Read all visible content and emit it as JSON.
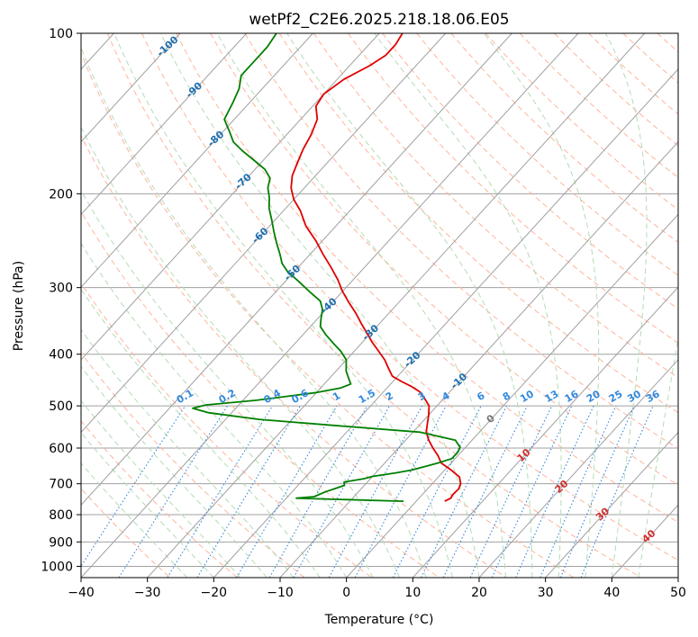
{
  "chart_data": {
    "type": "line",
    "title": "wetPf2_C2E6.2025.218.18.06.E05",
    "xlabel": "Temperature (°C)",
    "ylabel": "Pressure (hPa)",
    "xlim": [
      -40,
      50
    ],
    "ylim": [
      1050,
      100
    ],
    "y_scale": "log",
    "grid": true,
    "x_ticks": [
      "−40",
      "−30",
      "−20",
      "−10",
      "0",
      "10",
      "20",
      "30",
      "40",
      "50"
    ],
    "y_ticks": [
      "100",
      "200",
      "300",
      "400",
      "500",
      "600",
      "700",
      "800",
      "900",
      "1000"
    ],
    "y_tick_values": [
      100,
      200,
      300,
      400,
      500,
      600,
      700,
      800,
      900,
      1000
    ],
    "colors": {
      "temperature": "#e00000",
      "dewpoint": "#007f00",
      "isotherm": "#a0a0a0",
      "dry_adiabat": "#ffb49b",
      "moist_adiabat": "#b4dcb4",
      "mixing_ratio": "#3388dd",
      "label_temp": "#1f6fb0",
      "label_warm": "#d03030",
      "label_zero": "#777777"
    },
    "series": [
      {
        "role": "temperature",
        "points": [
          [
            4.3,
            755
          ],
          [
            4.8,
            745
          ],
          [
            4.6,
            735
          ],
          [
            4.7,
            715
          ],
          [
            4.3,
            700
          ],
          [
            3.2,
            680
          ],
          [
            1.0,
            660
          ],
          [
            -1.5,
            640
          ],
          [
            -3.0,
            620
          ],
          [
            -4.8,
            600
          ],
          [
            -6.5,
            580
          ],
          [
            -8.0,
            560
          ],
          [
            -9.0,
            540
          ],
          [
            -10.0,
            520
          ],
          [
            -11.2,
            500
          ],
          [
            -12.8,
            485
          ],
          [
            -14.6,
            470
          ],
          [
            -16.5,
            460
          ],
          [
            -18.7,
            450
          ],
          [
            -20.8,
            440
          ],
          [
            -22.5,
            425
          ],
          [
            -24.2,
            410
          ],
          [
            -26.3,
            395
          ],
          [
            -28.5,
            380
          ],
          [
            -30.6,
            365
          ],
          [
            -32.8,
            350
          ],
          [
            -35.0,
            335
          ],
          [
            -37.5,
            320
          ],
          [
            -40.0,
            305
          ],
          [
            -42.3,
            290
          ],
          [
            -45.0,
            275
          ],
          [
            -48.0,
            260
          ],
          [
            -51.0,
            245
          ],
          [
            -54.5,
            230
          ],
          [
            -57.5,
            215
          ],
          [
            -60.0,
            205
          ],
          [
            -62.0,
            195
          ],
          [
            -63.5,
            185
          ],
          [
            -64.5,
            175
          ],
          [
            -65.5,
            165
          ],
          [
            -66.3,
            155
          ],
          [
            -67.5,
            145
          ],
          [
            -69.5,
            137
          ],
          [
            -70.0,
            130
          ],
          [
            -69.0,
            122
          ],
          [
            -67.0,
            115
          ],
          [
            -66.0,
            110
          ],
          [
            -66.0,
            105
          ],
          [
            -66.5,
            100
          ]
        ]
      },
      {
        "role": "dewpoint",
        "points": [
          [
            -1.9,
            755
          ],
          [
            -18.5,
            745
          ],
          [
            -16.0,
            740
          ],
          [
            -15.0,
            725
          ],
          [
            -14.0,
            715
          ],
          [
            -13.0,
            705
          ],
          [
            -13.5,
            695
          ],
          [
            -11.0,
            685
          ],
          [
            -10.0,
            678
          ],
          [
            -7.0,
            668
          ],
          [
            -5.0,
            660
          ],
          [
            -3.5,
            650
          ],
          [
            -2.0,
            640
          ],
          [
            -0.5,
            628
          ],
          [
            -0.5,
            610
          ],
          [
            -0.8,
            598
          ],
          [
            -2.5,
            580
          ],
          [
            -9.0,
            560
          ],
          [
            -22.0,
            545
          ],
          [
            -35.0,
            530
          ],
          [
            -43.5,
            515
          ],
          [
            -46.5,
            505
          ],
          [
            -45.0,
            498
          ],
          [
            -38.0,
            488
          ],
          [
            -34.0,
            480
          ],
          [
            -30.0,
            472
          ],
          [
            -27.0,
            463
          ],
          [
            -26.0,
            455
          ],
          [
            -27.0,
            445
          ],
          [
            -28.5,
            430
          ],
          [
            -30.0,
            410
          ],
          [
            -32.0,
            395
          ],
          [
            -34.0,
            383
          ],
          [
            -36.5,
            368
          ],
          [
            -38.5,
            355
          ],
          [
            -39.5,
            343
          ],
          [
            -40.5,
            330
          ],
          [
            -42.0,
            318
          ],
          [
            -45.0,
            305
          ],
          [
            -48.0,
            292
          ],
          [
            -51.0,
            280
          ],
          [
            -53.0,
            270
          ],
          [
            -54.5,
            260
          ],
          [
            -56.5,
            248
          ],
          [
            -58.5,
            236
          ],
          [
            -60.5,
            224
          ],
          [
            -62.5,
            213
          ],
          [
            -64.0,
            203
          ],
          [
            -65.5,
            195
          ],
          [
            -66.5,
            187
          ],
          [
            -68.5,
            180
          ],
          [
            -71.0,
            174
          ],
          [
            -74.5,
            166
          ],
          [
            -77.0,
            160
          ],
          [
            -79.0,
            153
          ],
          [
            -81.5,
            145
          ],
          [
            -82.5,
            135
          ],
          [
            -83.5,
            127
          ],
          [
            -85.0,
            120
          ],
          [
            -85.0,
            112
          ],
          [
            -85.0,
            106
          ],
          [
            -85.5,
            100
          ]
        ]
      }
    ],
    "isotherm_labels": [
      "-100",
      "-90",
      "-80",
      "-70",
      "-60",
      "-50",
      "-40",
      "-30",
      "-20",
      "-10",
      "0",
      "10",
      "20",
      "30",
      "40"
    ],
    "isotherm_label_values": [
      -100,
      -90,
      -80,
      -70,
      -60,
      -50,
      -40,
      -30,
      -20,
      -10,
      0,
      10,
      20,
      30,
      40
    ],
    "isotherm_label_pressures": [
      106,
      128,
      158,
      190,
      240,
      282,
      325,
      365,
      410,
      450,
      530,
      620,
      710,
      800,
      880
    ],
    "mixing_ratio_labels": [
      "0.1",
      "0.2",
      "0.4",
      "0.6",
      "1",
      "1.5",
      "2",
      "3",
      "4",
      "6",
      "8",
      "10",
      "13",
      "16",
      "20",
      "25",
      "30",
      "36"
    ],
    "mixing_ratio_values": [
      0.1,
      0.2,
      0.4,
      0.6,
      1,
      1.5,
      2,
      3,
      4,
      6,
      8,
      10,
      13,
      16,
      20,
      25,
      30,
      36
    ]
  }
}
